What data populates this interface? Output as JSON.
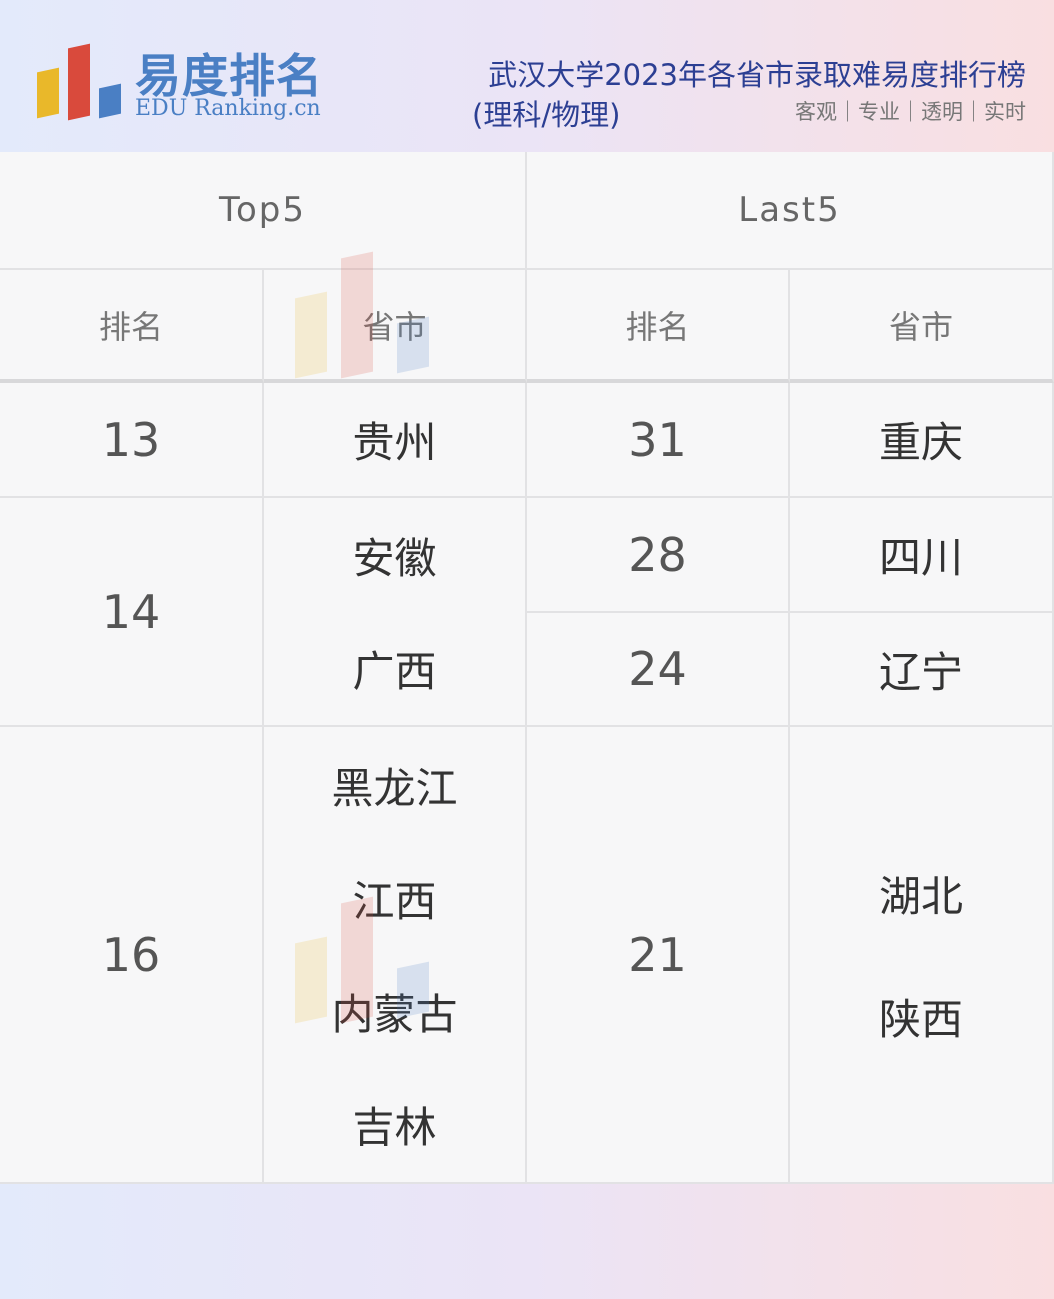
{
  "header": {
    "logo_cn": "易度排名",
    "logo_en": "EDU Ranking.cn",
    "title": "武汉大学2023年各省市录取难易度排行榜",
    "subtitle": "(理科/物理)",
    "tags": "客观｜专业｜透明｜实时"
  },
  "table": {
    "groups": [
      "Top5",
      "Last5"
    ],
    "columns": [
      "排名",
      "省市",
      "排名",
      "省市"
    ],
    "top5": [
      {
        "rank": "13",
        "provinces": [
          "贵州"
        ]
      },
      {
        "rank": "14",
        "provinces": [
          "安徽",
          "广西"
        ]
      },
      {
        "rank": "16",
        "provinces": [
          "黑龙江",
          "江西",
          "内蒙古",
          "吉林"
        ]
      }
    ],
    "last5": [
      {
        "rank": "31",
        "provinces": [
          "重庆"
        ]
      },
      {
        "rank": "28",
        "provinces": [
          "四川"
        ]
      },
      {
        "rank": "24",
        "provinces": [
          "辽宁"
        ]
      },
      {
        "rank": "21",
        "provinces": [
          "湖北",
          "陕西"
        ]
      }
    ]
  },
  "colors": {
    "brand": "#4a7fc4",
    "title": "#2c3f93",
    "yellow": "#e9b82a",
    "red": "#d94a3c"
  }
}
